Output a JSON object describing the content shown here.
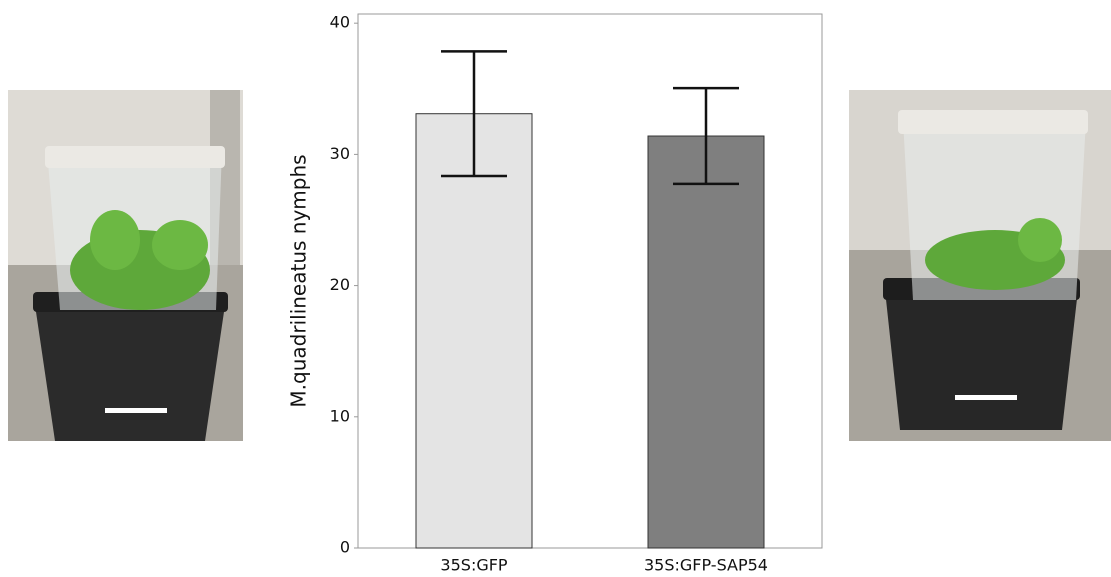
{
  "chart_data": {
    "type": "bar",
    "y_label": "M.quadrilineatus nymphs",
    "categories": [
      "35S:GFP",
      "35S:GFP-SAP54"
    ],
    "values": [
      33.1,
      31.4
    ],
    "errors": [
      4.75,
      3.65
    ],
    "colors": [
      "#e4e4e4",
      "#7f7f7f"
    ],
    "ylim": [
      0,
      40.7
    ],
    "yticks": [
      0,
      10,
      20,
      30,
      40
    ]
  }
}
